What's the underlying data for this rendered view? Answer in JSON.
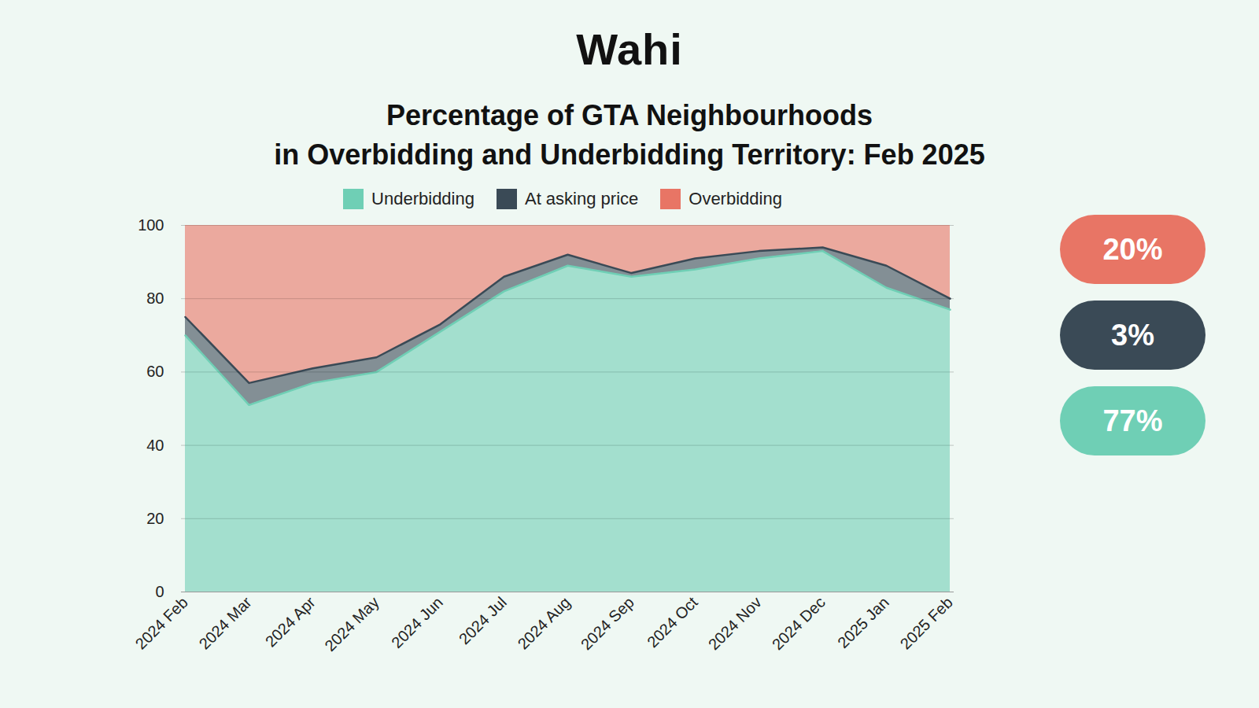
{
  "chart_data": {
    "type": "area",
    "stacked": true,
    "brand": "Wahi",
    "title": "Percentage of GTA Neighbourhoods\nin Overbidding and Underbidding Territory: Feb 2025",
    "categories": [
      "2024 Feb",
      "2024 Mar",
      "2024 Apr",
      "2024 May",
      "2024 Jun",
      "2024 Jul",
      "2024 Aug",
      "2024 Sep",
      "2024 Oct",
      "2024 Nov",
      "2024 Dec",
      "2025 Jan",
      "2025 Feb"
    ],
    "series": [
      {
        "name": "Underbidding",
        "color": "#6fcfb5",
        "values": [
          70,
          51,
          57,
          60,
          71,
          82,
          89,
          86,
          88,
          91,
          93,
          83,
          77
        ]
      },
      {
        "name": "At asking price",
        "color": "#3a4a56",
        "values": [
          5,
          6,
          4,
          4,
          2,
          4,
          3,
          1,
          3,
          2,
          1,
          6,
          3
        ]
      },
      {
        "name": "Overbidding",
        "color": "#e87565",
        "values": [
          25,
          43,
          39,
          36,
          27,
          14,
          8,
          13,
          9,
          7,
          6,
          11,
          20
        ]
      }
    ],
    "annotations": [
      {
        "text": "20%",
        "series": "Overbidding"
      },
      {
        "text": "3%",
        "series": "At asking price"
      },
      {
        "text": "77%",
        "series": "Underbidding"
      }
    ],
    "ylim": [
      0,
      100
    ],
    "yticks": [
      0,
      20,
      40,
      60,
      80,
      100
    ],
    "grid": true
  }
}
